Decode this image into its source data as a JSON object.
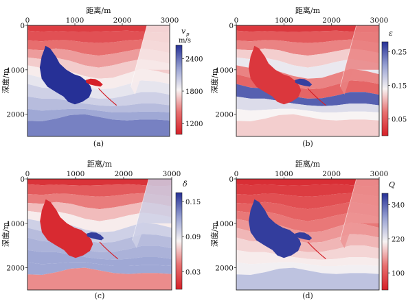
{
  "chart_data": [
    {
      "id": "a",
      "type": "heatmap",
      "title": "",
      "caption": "(a)",
      "xlabel": "距离/m",
      "ylabel": "深度/m",
      "xticks": [
        "0",
        "1000",
        "2000",
        "3000"
      ],
      "yticks": [
        "0",
        "1000",
        "2000"
      ],
      "xlim": [
        0,
        3000
      ],
      "ylim": [
        0,
        2500
      ],
      "colorbar": {
        "symbol": "vp",
        "symbol_sub": "p",
        "unit": "m/s",
        "ticks": [
          "2400",
          "1800",
          "1200"
        ],
        "tick_values": [
          2400,
          1800,
          1200
        ],
        "range": [
          1000,
          2650
        ]
      },
      "layer_values": [
        1150,
        1250,
        1400,
        1550,
        1700,
        1800,
        1900,
        2000,
        2100,
        2200,
        2350
      ],
      "salt_value": 2650,
      "lens_value": 1000
    },
    {
      "id": "b",
      "type": "heatmap",
      "caption": "(b)",
      "xlabel": "距离/m",
      "ylabel": "深度/m",
      "xticks": [
        "0",
        "1000",
        "2000",
        "3000"
      ],
      "yticks": [
        "0",
        "1000",
        "2000"
      ],
      "xlim": [
        0,
        3000
      ],
      "ylim": [
        0,
        2500
      ],
      "colorbar": {
        "symbol": "ε",
        "unit": "",
        "ticks": [
          "0.25",
          "0.15",
          "0.05"
        ],
        "tick_values": [
          0.25,
          0.15,
          0.05
        ],
        "range": [
          0.0,
          0.28
        ]
      },
      "layer_values": [
        0.02,
        0.05,
        0.08,
        0.12,
        0.15,
        0.08,
        0.06,
        0.25,
        0.16,
        0.14,
        0.12
      ],
      "salt_value": 0.02,
      "lens_value": 0.27
    },
    {
      "id": "c",
      "type": "heatmap",
      "caption": "(c)",
      "xlabel": "距离/m",
      "ylabel": "深度/m",
      "xticks": [
        "0",
        "1000",
        "2000",
        "3000"
      ],
      "yticks": [
        "0",
        "1000",
        "2000"
      ],
      "xlim": [
        0,
        3000
      ],
      "ylim": [
        0,
        2500
      ],
      "colorbar": {
        "symbol": "δ",
        "unit": "",
        "ticks": [
          "0.15",
          "0.09",
          "0.03"
        ],
        "tick_values": [
          0.15,
          0.09,
          0.03
        ],
        "range": [
          0.0,
          0.165
        ]
      },
      "layer_values": [
        0.01,
        0.03,
        0.045,
        0.065,
        0.08,
        0.1,
        0.11,
        0.115,
        0.12,
        0.12,
        0.05
      ],
      "salt_value": 0.005,
      "lens_value": 0.16
    },
    {
      "id": "d",
      "type": "heatmap",
      "caption": "(d)",
      "xlabel": "距离/m",
      "ylabel": "深度/m",
      "xticks": [
        "0",
        "1000",
        "2000",
        "3000"
      ],
      "yticks": [
        "0",
        "1000",
        "2000"
      ],
      "xlim": [
        0,
        3000
      ],
      "ylim": [
        0,
        2500
      ],
      "colorbar": {
        "symbol": "Q",
        "unit": "",
        "ticks": [
          "340",
          "220",
          "100"
        ],
        "tick_values": [
          340,
          220,
          100
        ],
        "range": [
          40,
          380
        ]
      },
      "layer_values": [
        55,
        70,
        90,
        110,
        130,
        150,
        170,
        190,
        205,
        215,
        260
      ],
      "salt_value": 370,
      "lens_value": 370
    }
  ]
}
